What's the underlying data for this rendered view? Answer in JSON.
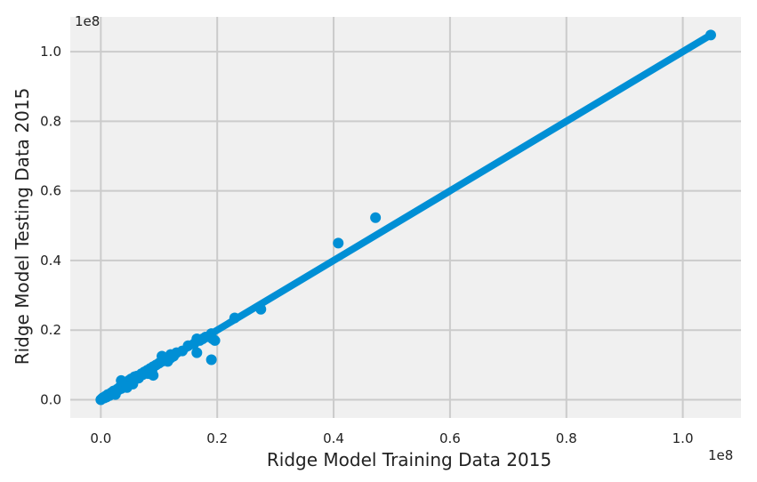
{
  "chart_data": {
    "type": "scatter",
    "title": "",
    "xlabel": "Ridge Model Training Data 2015",
    "ylabel": "Ridge Model Testing Data 2015",
    "x_offset_label": "1e8",
    "y_offset_label": "1e8",
    "xlim": [
      -0.0525,
      1.1
    ],
    "ylim": [
      -0.0525,
      1.1
    ],
    "xticks": [
      0.0,
      0.2,
      0.4,
      0.6,
      0.8,
      1.0
    ],
    "yticks": [
      0.0,
      0.2,
      0.4,
      0.6,
      0.8,
      1.0
    ],
    "xtick_labels": [
      "0.0",
      "0.2",
      "0.4",
      "0.6",
      "0.8",
      "1.0"
    ],
    "ytick_labels": [
      "0.0",
      "0.2",
      "0.4",
      "0.6",
      "0.8",
      "1.0"
    ],
    "grid": true,
    "colors": {
      "series": "#008fd5",
      "plot_bg": "#f0f0f0",
      "grid": "#cbcbcb",
      "figure_bg": "#ffffff"
    },
    "series": [
      {
        "type": "scatter",
        "x": [
          0.0,
          0.002,
          0.004,
          0.006,
          0.008,
          0.01,
          0.012,
          0.015,
          0.018,
          0.02,
          0.022,
          0.025,
          0.028,
          0.03,
          0.032,
          0.035,
          0.038,
          0.04,
          0.042,
          0.045,
          0.048,
          0.05,
          0.052,
          0.055,
          0.058,
          0.06,
          0.062,
          0.065,
          0.068,
          0.07,
          0.072,
          0.075,
          0.078,
          0.08,
          0.082,
          0.085,
          0.088,
          0.09,
          0.095,
          0.1,
          0.105,
          0.11,
          0.115,
          0.12,
          0.125,
          0.13,
          0.14,
          0.15,
          0.16,
          0.165,
          0.17,
          0.175,
          0.18,
          0.19,
          0.19,
          0.192,
          0.196,
          0.23,
          0.275,
          0.408,
          0.472,
          1.048,
          0.025,
          0.035,
          0.045,
          0.055,
          0.09,
          0.105,
          0.12,
          0.165
        ],
        "y": [
          0.0,
          0.003,
          0.006,
          0.005,
          0.01,
          0.008,
          0.015,
          0.012,
          0.02,
          0.018,
          0.025,
          0.022,
          0.03,
          0.028,
          0.035,
          0.032,
          0.04,
          0.036,
          0.05,
          0.042,
          0.055,
          0.05,
          0.06,
          0.058,
          0.066,
          0.06,
          0.068,
          0.062,
          0.07,
          0.075,
          0.072,
          0.08,
          0.076,
          0.085,
          0.075,
          0.09,
          0.085,
          0.095,
          0.1,
          0.105,
          0.11,
          0.12,
          0.11,
          0.13,
          0.125,
          0.135,
          0.14,
          0.155,
          0.16,
          0.135,
          0.17,
          0.175,
          0.18,
          0.19,
          0.115,
          0.175,
          0.17,
          0.235,
          0.26,
          0.45,
          0.523,
          1.048,
          0.015,
          0.055,
          0.035,
          0.045,
          0.07,
          0.125,
          0.12,
          0.175
        ]
      },
      {
        "type": "line",
        "x": [
          0.0,
          1.048
        ],
        "y": [
          0.0,
          1.048
        ]
      }
    ]
  }
}
